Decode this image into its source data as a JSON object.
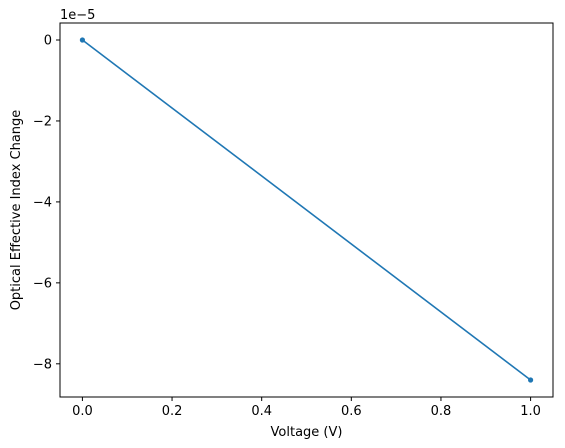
{
  "chart_data": {
    "type": "line",
    "xlabel": "Voltage (V)",
    "ylabel": "Optical Effective Index Change",
    "y_offset_label": "1e−5",
    "xlim": [
      -0.05,
      1.05
    ],
    "ylim": [
      -8.82,
      0.42
    ],
    "x_ticks": [
      {
        "value": 0.0,
        "label": "0.0"
      },
      {
        "value": 0.2,
        "label": "0.2"
      },
      {
        "value": 0.4,
        "label": "0.4"
      },
      {
        "value": 0.6,
        "label": "0.6"
      },
      {
        "value": 0.8,
        "label": "0.8"
      },
      {
        "value": 1.0,
        "label": "1.0"
      }
    ],
    "y_ticks": [
      {
        "value": 0,
        "label": "0"
      },
      {
        "value": -2,
        "label": "−2"
      },
      {
        "value": -4,
        "label": "−4"
      },
      {
        "value": -6,
        "label": "−6"
      },
      {
        "value": -8,
        "label": "−8"
      }
    ],
    "y_scale_multiplier": 1e-05,
    "series": [
      {
        "color": "#1f77b4",
        "marker": "dot",
        "x": [
          0.0,
          1.0
        ],
        "y": [
          0.0,
          -8.4
        ]
      }
    ],
    "grid": false,
    "legend": "none"
  }
}
